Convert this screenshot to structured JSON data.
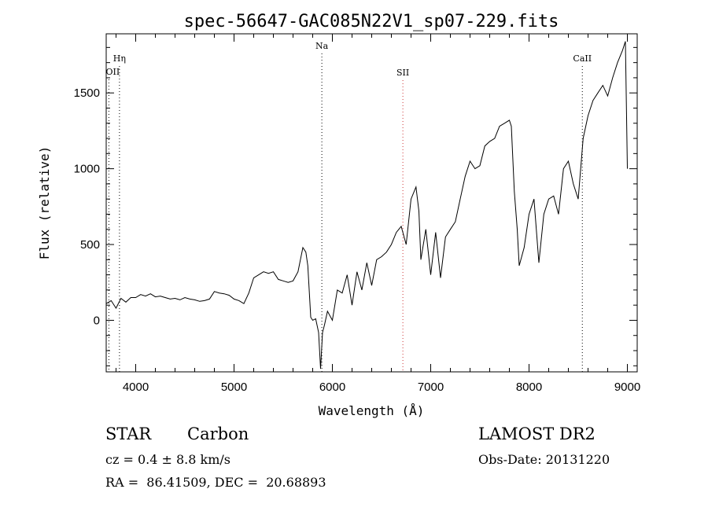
{
  "chart_data": {
    "type": "line",
    "title": "spec-56647-GAC085N22V1_sp07-229.fits",
    "xlabel": "Wavelength (Å)",
    "ylabel": "Flux (relative)",
    "xlim": [
      3700,
      9100
    ],
    "ylim": [
      -340,
      1890
    ],
    "x_ticks": [
      4000,
      5000,
      6000,
      7000,
      8000,
      9000
    ],
    "x_tick_labels": [
      "4000",
      "5000",
      "6000",
      "7000",
      "8000",
      "9000"
    ],
    "y_ticks": [
      0,
      500,
      1000,
      1500
    ],
    "y_tick_labels": [
      "0",
      "500",
      "1000",
      "1500"
    ],
    "grid": false,
    "line_color": "#000000",
    "marker_color": "#cc3333",
    "markers": [
      {
        "label": "OII",
        "x": 3727,
        "color": "#000000"
      },
      {
        "label": "Hη",
        "x": 3835,
        "color": "#000000"
      },
      {
        "label": "Na",
        "x": 5893,
        "color": "#000000"
      },
      {
        "label": "SII",
        "x": 6717,
        "color": "#cc3333"
      },
      {
        "label": "CaII",
        "x": 8542,
        "color": "#000000"
      }
    ],
    "series": [
      {
        "x": [
          3700,
          3750,
          3800,
          3850,
          3900,
          3950,
          4000,
          4050,
          4100,
          4150,
          4200,
          4250,
          4300,
          4350,
          4400,
          4450,
          4500,
          4550,
          4600,
          4650,
          4700,
          4750,
          4800,
          4850,
          4900,
          4950,
          5000,
          5050,
          5100,
          5150,
          5200,
          5250,
          5300,
          5350,
          5400,
          5450,
          5500,
          5550,
          5600,
          5650,
          5700,
          5730,
          5750,
          5780,
          5800,
          5830,
          5860,
          5880,
          5900,
          5920,
          5950,
          6000,
          6050,
          6100,
          6150,
          6200,
          6250,
          6300,
          6350,
          6400,
          6450,
          6500,
          6550,
          6600,
          6650,
          6700,
          6750,
          6800,
          6850,
          6880,
          6900,
          6950,
          7000,
          7050,
          7100,
          7150,
          7200,
          7250,
          7300,
          7350,
          7400,
          7450,
          7500,
          7550,
          7600,
          7650,
          7700,
          7750,
          7800,
          7820,
          7850,
          7880,
          7900,
          7950,
          8000,
          8050,
          8100,
          8150,
          8200,
          8250,
          8300,
          8350,
          8400,
          8450,
          8500,
          8550,
          8600,
          8650,
          8700,
          8750,
          8800,
          8850,
          8900,
          8950,
          8980,
          9000
        ],
        "y": [
          110,
          130,
          80,
          145,
          120,
          150,
          150,
          170,
          160,
          175,
          155,
          160,
          150,
          140,
          145,
          135,
          150,
          140,
          135,
          125,
          130,
          140,
          190,
          180,
          175,
          165,
          140,
          130,
          110,
          180,
          280,
          300,
          320,
          310,
          320,
          270,
          260,
          250,
          260,
          320,
          480,
          450,
          360,
          20,
          0,
          10,
          -80,
          -320,
          -80,
          -30,
          60,
          0,
          200,
          180,
          300,
          100,
          320,
          200,
          380,
          230,
          400,
          420,
          450,
          500,
          580,
          620,
          500,
          800,
          880,
          720,
          400,
          600,
          300,
          580,
          280,
          550,
          600,
          650,
          800,
          950,
          1050,
          1000,
          1020,
          1150,
          1180,
          1200,
          1280,
          1300,
          1320,
          1280,
          850,
          600,
          360,
          480,
          700,
          800,
          380,
          700,
          800,
          820,
          700,
          1000,
          1050,
          900,
          800,
          1200,
          1350,
          1450,
          1500,
          1550,
          1480,
          1600,
          1700,
          1780,
          1840,
          1000
        ]
      }
    ]
  },
  "info": {
    "class": "STAR",
    "subclass": "Carbon",
    "survey": "LAMOST DR2",
    "cz_line": "cz = 0.4 ± 8.8 km/s",
    "obs_date_line": "Obs-Date: 20131220",
    "radec_line": "RA =  86.41509, DEC =  20.68893"
  }
}
